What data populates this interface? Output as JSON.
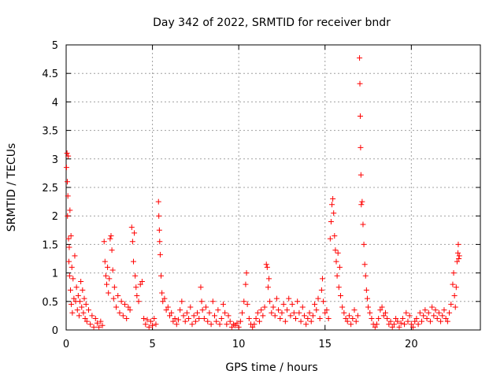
{
  "chart_data": {
    "type": "scatter",
    "title": "Day 342 of 2022, SRMTID for receiver bndr",
    "xlabel": "GPS time / hours",
    "ylabel": "SRMTID / TECUs",
    "xlim": [
      0,
      24
    ],
    "ylim": [
      0,
      5
    ],
    "x_ticks": [
      0,
      5,
      10,
      15,
      20
    ],
    "x_tick_labels": [
      "0",
      "5",
      "10",
      "15",
      "20"
    ],
    "y_ticks": [
      0,
      0.5,
      1,
      1.5,
      2,
      2.5,
      3,
      3.5,
      4,
      4.5,
      5
    ],
    "y_tick_labels": [
      "0",
      "0.5",
      "1",
      "1.5",
      "2",
      "2.5",
      "3",
      "3.5",
      "4",
      "4.5",
      "5"
    ],
    "grid": true,
    "marker": "+",
    "series": [
      {
        "name": "SRMTID",
        "color": "#ff0000",
        "points": [
          [
            0.02,
            2.85
          ],
          [
            0.05,
            3.1
          ],
          [
            0.07,
            2.6
          ],
          [
            0.08,
            2.0
          ],
          [
            0.1,
            2.35
          ],
          [
            0.12,
            3.05
          ],
          [
            0.14,
            1.6
          ],
          [
            0.16,
            1.2
          ],
          [
            0.18,
            1.45
          ],
          [
            0.2,
            0.95
          ],
          [
            0.22,
            2.1
          ],
          [
            0.25,
            0.7
          ],
          [
            0.28,
            1.65
          ],
          [
            0.3,
            0.45
          ],
          [
            0.33,
            1.1
          ],
          [
            0.36,
            0.3
          ],
          [
            0.4,
            0.9
          ],
          [
            0.45,
            0.55
          ],
          [
            0.5,
            1.3
          ],
          [
            0.55,
            0.5
          ],
          [
            0.6,
            0.75
          ],
          [
            0.65,
            0.35
          ],
          [
            0.7,
            0.6
          ],
          [
            0.75,
            0.25
          ],
          [
            0.8,
            0.5
          ],
          [
            0.85,
            0.85
          ],
          [
            0.9,
            0.4
          ],
          [
            0.95,
            0.7
          ],
          [
            1.0,
            0.3
          ],
          [
            1.05,
            0.55
          ],
          [
            1.1,
            0.2
          ],
          [
            1.15,
            0.45
          ],
          [
            1.2,
            0.15
          ],
          [
            1.3,
            0.35
          ],
          [
            1.4,
            0.1
          ],
          [
            1.5,
            0.25
          ],
          [
            1.6,
            0.05
          ],
          [
            1.7,
            0.2
          ],
          [
            1.8,
            0.12
          ],
          [
            1.9,
            0.05
          ],
          [
            2.0,
            0.15
          ],
          [
            2.1,
            0.08
          ],
          [
            2.2,
            1.55
          ],
          [
            2.25,
            1.2
          ],
          [
            2.3,
            0.95
          ],
          [
            2.35,
            0.8
          ],
          [
            2.4,
            1.1
          ],
          [
            2.45,
            0.65
          ],
          [
            2.5,
            0.9
          ],
          [
            2.55,
            1.6
          ],
          [
            2.6,
            1.65
          ],
          [
            2.65,
            1.4
          ],
          [
            2.7,
            1.05
          ],
          [
            2.75,
            0.55
          ],
          [
            2.8,
            0.75
          ],
          [
            2.9,
            0.4
          ],
          [
            3.0,
            0.6
          ],
          [
            3.1,
            0.3
          ],
          [
            3.2,
            0.5
          ],
          [
            3.3,
            0.25
          ],
          [
            3.4,
            0.45
          ],
          [
            3.5,
            0.2
          ],
          [
            3.6,
            0.4
          ],
          [
            3.7,
            0.35
          ],
          [
            3.8,
            1.8
          ],
          [
            3.85,
            1.55
          ],
          [
            3.9,
            1.2
          ],
          [
            3.95,
            1.7
          ],
          [
            4.0,
            0.95
          ],
          [
            4.05,
            0.75
          ],
          [
            4.1,
            0.6
          ],
          [
            4.2,
            0.5
          ],
          [
            4.3,
            0.8
          ],
          [
            4.4,
            0.85
          ],
          [
            4.5,
            0.2
          ],
          [
            4.6,
            0.1
          ],
          [
            4.7,
            0.18
          ],
          [
            4.8,
            0.05
          ],
          [
            4.9,
            0.15
          ],
          [
            5.0,
            0.08
          ],
          [
            5.1,
            0.2
          ],
          [
            5.2,
            0.1
          ],
          [
            5.35,
            2.25
          ],
          [
            5.37,
            2.0
          ],
          [
            5.4,
            1.75
          ],
          [
            5.42,
            1.55
          ],
          [
            5.45,
            1.32
          ],
          [
            5.5,
            0.95
          ],
          [
            5.55,
            0.65
          ],
          [
            5.6,
            0.5
          ],
          [
            5.7,
            0.55
          ],
          [
            5.8,
            0.35
          ],
          [
            5.9,
            0.4
          ],
          [
            6.0,
            0.25
          ],
          [
            6.1,
            0.3
          ],
          [
            6.2,
            0.15
          ],
          [
            6.3,
            0.2
          ],
          [
            6.4,
            0.1
          ],
          [
            6.5,
            0.18
          ],
          [
            6.6,
            0.35
          ],
          [
            6.7,
            0.5
          ],
          [
            6.8,
            0.25
          ],
          [
            6.9,
            0.15
          ],
          [
            7.0,
            0.3
          ],
          [
            7.1,
            0.2
          ],
          [
            7.2,
            0.4
          ],
          [
            7.3,
            0.1
          ],
          [
            7.4,
            0.25
          ],
          [
            7.5,
            0.15
          ],
          [
            7.6,
            0.3
          ],
          [
            7.7,
            0.2
          ],
          [
            7.8,
            0.75
          ],
          [
            7.85,
            0.5
          ],
          [
            7.9,
            0.35
          ],
          [
            8.0,
            0.2
          ],
          [
            8.1,
            0.4
          ],
          [
            8.2,
            0.15
          ],
          [
            8.3,
            0.3
          ],
          [
            8.4,
            0.1
          ],
          [
            8.5,
            0.5
          ],
          [
            8.6,
            0.25
          ],
          [
            8.7,
            0.15
          ],
          [
            8.8,
            0.35
          ],
          [
            8.9,
            0.1
          ],
          [
            9.0,
            0.2
          ],
          [
            9.1,
            0.45
          ],
          [
            9.2,
            0.3
          ],
          [
            9.3,
            0.1
          ],
          [
            9.4,
            0.25
          ],
          [
            9.5,
            0.15
          ],
          [
            9.6,
            0.05
          ],
          [
            9.7,
            0.1
          ],
          [
            9.8,
            0.08
          ],
          [
            9.9,
            0.12
          ],
          [
            10.0,
            0.05
          ],
          [
            10.1,
            0.15
          ],
          [
            10.2,
            0.3
          ],
          [
            10.3,
            0.5
          ],
          [
            10.4,
            0.8
          ],
          [
            10.45,
            1.0
          ],
          [
            10.5,
            0.45
          ],
          [
            10.6,
            0.2
          ],
          [
            10.7,
            0.1
          ],
          [
            10.8,
            0.05
          ],
          [
            10.9,
            0.1
          ],
          [
            11.0,
            0.2
          ],
          [
            11.1,
            0.3
          ],
          [
            11.2,
            0.15
          ],
          [
            11.3,
            0.35
          ],
          [
            11.4,
            0.25
          ],
          [
            11.5,
            0.4
          ],
          [
            11.6,
            1.15
          ],
          [
            11.65,
            1.1
          ],
          [
            11.7,
            0.75
          ],
          [
            11.75,
            0.9
          ],
          [
            11.8,
            0.5
          ],
          [
            11.9,
            0.3
          ],
          [
            12.0,
            0.4
          ],
          [
            12.1,
            0.25
          ],
          [
            12.2,
            0.55
          ],
          [
            12.3,
            0.35
          ],
          [
            12.4,
            0.2
          ],
          [
            12.5,
            0.3
          ],
          [
            12.6,
            0.45
          ],
          [
            12.7,
            0.15
          ],
          [
            12.8,
            0.35
          ],
          [
            12.9,
            0.55
          ],
          [
            13.0,
            0.25
          ],
          [
            13.1,
            0.45
          ],
          [
            13.2,
            0.3
          ],
          [
            13.3,
            0.2
          ],
          [
            13.4,
            0.5
          ],
          [
            13.5,
            0.3
          ],
          [
            13.6,
            0.15
          ],
          [
            13.7,
            0.4
          ],
          [
            13.8,
            0.25
          ],
          [
            13.9,
            0.1
          ],
          [
            14.0,
            0.2
          ],
          [
            14.1,
            0.3
          ],
          [
            14.2,
            0.15
          ],
          [
            14.3,
            0.25
          ],
          [
            14.4,
            0.45
          ],
          [
            14.5,
            0.35
          ],
          [
            14.6,
            0.55
          ],
          [
            14.7,
            0.2
          ],
          [
            14.8,
            0.7
          ],
          [
            14.85,
            0.9
          ],
          [
            14.9,
            0.5
          ],
          [
            15.0,
            0.3
          ],
          [
            15.1,
            0.35
          ],
          [
            15.2,
            0.2
          ],
          [
            15.3,
            1.6
          ],
          [
            15.35,
            1.9
          ],
          [
            15.4,
            2.2
          ],
          [
            15.45,
            2.3
          ],
          [
            15.5,
            2.05
          ],
          [
            15.55,
            1.65
          ],
          [
            15.6,
            1.4
          ],
          [
            15.65,
            1.2
          ],
          [
            15.7,
            0.95
          ],
          [
            15.75,
            1.35
          ],
          [
            15.8,
            0.75
          ],
          [
            15.85,
            1.1
          ],
          [
            15.9,
            0.6
          ],
          [
            16.0,
            0.4
          ],
          [
            16.1,
            0.3
          ],
          [
            16.2,
            0.2
          ],
          [
            16.3,
            0.15
          ],
          [
            16.4,
            0.25
          ],
          [
            16.5,
            0.1
          ],
          [
            16.6,
            0.2
          ],
          [
            16.7,
            0.35
          ],
          [
            16.8,
            0.15
          ],
          [
            16.9,
            0.25
          ],
          [
            17.0,
            4.77
          ],
          [
            17.02,
            4.32
          ],
          [
            17.04,
            3.75
          ],
          [
            17.06,
            3.2
          ],
          [
            17.08,
            2.72
          ],
          [
            17.1,
            2.2
          ],
          [
            17.15,
            2.25
          ],
          [
            17.2,
            1.85
          ],
          [
            17.25,
            1.5
          ],
          [
            17.3,
            1.15
          ],
          [
            17.35,
            0.95
          ],
          [
            17.4,
            0.7
          ],
          [
            17.45,
            0.55
          ],
          [
            17.5,
            0.4
          ],
          [
            17.6,
            0.3
          ],
          [
            17.7,
            0.2
          ],
          [
            17.8,
            0.1
          ],
          [
            17.9,
            0.05
          ],
          [
            18.0,
            0.1
          ],
          [
            18.1,
            0.2
          ],
          [
            18.2,
            0.35
          ],
          [
            18.3,
            0.4
          ],
          [
            18.4,
            0.25
          ],
          [
            18.5,
            0.3
          ],
          [
            18.6,
            0.2
          ],
          [
            18.7,
            0.1
          ],
          [
            18.8,
            0.15
          ],
          [
            18.9,
            0.05
          ],
          [
            19.0,
            0.1
          ],
          [
            19.1,
            0.2
          ],
          [
            19.2,
            0.15
          ],
          [
            19.3,
            0.05
          ],
          [
            19.4,
            0.12
          ],
          [
            19.5,
            0.2
          ],
          [
            19.6,
            0.1
          ],
          [
            19.7,
            0.3
          ],
          [
            19.8,
            0.15
          ],
          [
            19.9,
            0.25
          ],
          [
            20.0,
            0.1
          ],
          [
            20.1,
            0.05
          ],
          [
            20.2,
            0.15
          ],
          [
            20.3,
            0.2
          ],
          [
            20.4,
            0.1
          ],
          [
            20.5,
            0.3
          ],
          [
            20.6,
            0.15
          ],
          [
            20.7,
            0.25
          ],
          [
            20.8,
            0.35
          ],
          [
            20.9,
            0.2
          ],
          [
            21.0,
            0.3
          ],
          [
            21.1,
            0.15
          ],
          [
            21.2,
            0.4
          ],
          [
            21.3,
            0.25
          ],
          [
            21.4,
            0.35
          ],
          [
            21.5,
            0.2
          ],
          [
            21.6,
            0.3
          ],
          [
            21.7,
            0.15
          ],
          [
            21.8,
            0.25
          ],
          [
            21.9,
            0.35
          ],
          [
            22.0,
            0.2
          ],
          [
            22.1,
            0.15
          ],
          [
            22.2,
            0.3
          ],
          [
            22.3,
            0.45
          ],
          [
            22.4,
            0.8
          ],
          [
            22.45,
            1.0
          ],
          [
            22.5,
            0.6
          ],
          [
            22.55,
            0.4
          ],
          [
            22.6,
            0.75
          ],
          [
            22.65,
            1.2
          ],
          [
            22.7,
            1.35
          ],
          [
            22.72,
            1.5
          ],
          [
            22.75,
            1.25
          ],
          [
            22.78,
            1.3
          ]
        ]
      }
    ]
  }
}
